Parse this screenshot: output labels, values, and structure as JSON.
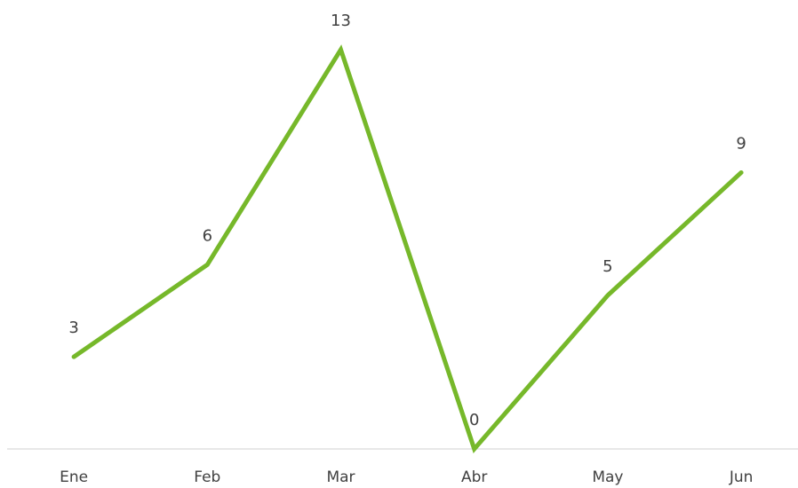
{
  "chart_data": {
    "type": "line",
    "categories": [
      "Ene",
      "Feb",
      "Mar",
      "Abr",
      "May",
      "Jun"
    ],
    "values": [
      3,
      6,
      13,
      0,
      5,
      9
    ],
    "color": "#76b82a",
    "ylim": [
      0,
      13
    ]
  }
}
